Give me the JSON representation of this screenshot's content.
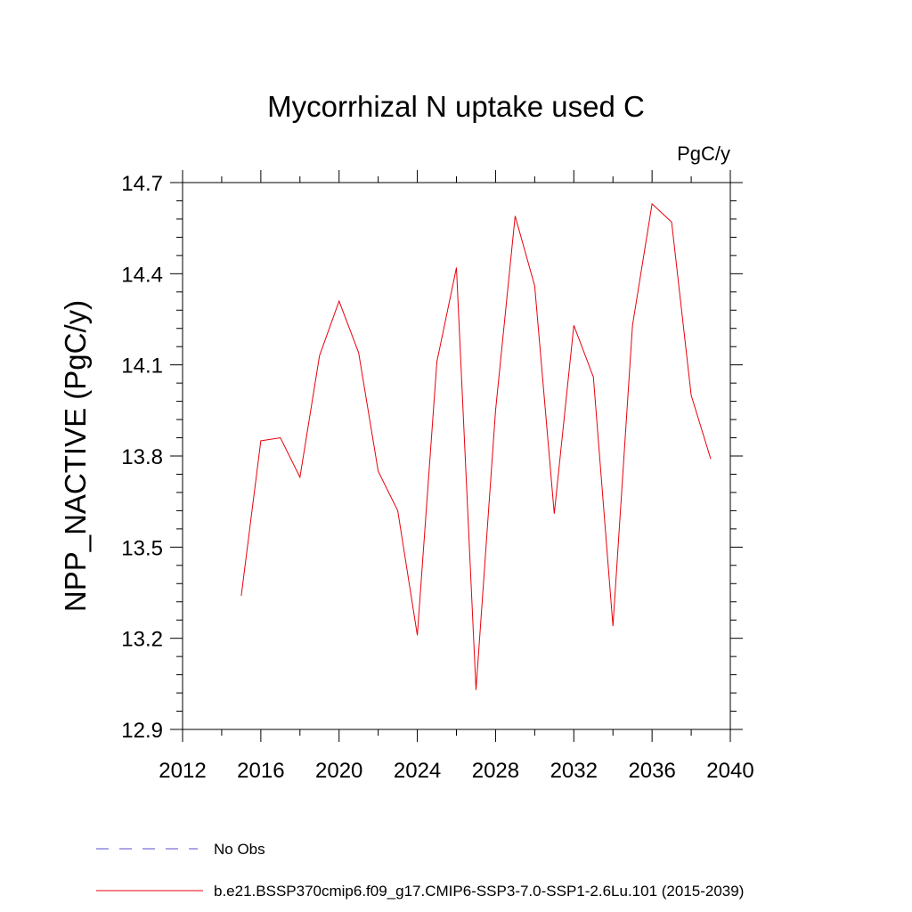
{
  "chart_data": {
    "type": "line",
    "title": "Mycorrhizal N uptake used C",
    "units": "PgC/y",
    "ylabel": "NPP_NACTIVE  (PgC/y)",
    "xlabel": "",
    "xlim": [
      2012,
      2040
    ],
    "ylim": [
      12.9,
      14.7
    ],
    "x_ticks": [
      2012,
      2016,
      2020,
      2024,
      2028,
      2032,
      2036,
      2040
    ],
    "y_ticks": [
      12.9,
      13.2,
      13.5,
      13.8,
      14.1,
      14.4,
      14.7
    ],
    "x_tick_labels": [
      "2012",
      "2016",
      "2020",
      "2024",
      "2028",
      "2032",
      "2036",
      "2040"
    ],
    "y_tick_labels": [
      "12.9",
      "13.2",
      "13.5",
      "13.8",
      "14.1",
      "14.4",
      "14.7"
    ],
    "series": [
      {
        "name": "b.e21.BSSP370cmip6.f09_g17.CMIP6-SSP3-7.0-SSP1-2.6Lu.101 (2015-2039)",
        "color": "#e8000b",
        "x": [
          2015,
          2016,
          2017,
          2018,
          2019,
          2020,
          2021,
          2022,
          2023,
          2024,
          2025,
          2026,
          2027,
          2028,
          2029,
          2030,
          2031,
          2032,
          2033,
          2034,
          2035,
          2036,
          2037,
          2038,
          2039
        ],
        "values": [
          13.34,
          13.85,
          13.86,
          13.73,
          14.13,
          14.31,
          14.14,
          13.75,
          13.62,
          13.21,
          14.11,
          14.42,
          13.03,
          13.95,
          14.59,
          14.36,
          13.61,
          14.23,
          14.06,
          13.24,
          14.23,
          14.63,
          14.57,
          14.0,
          13.79
        ]
      }
    ],
    "legend": [
      {
        "label": "No Obs",
        "color": "#5a4fcf",
        "style": "dashed"
      },
      {
        "label": "b.e21.BSSP370cmip6.f09_g17.CMIP6-SSP3-7.0-SSP1-2.6Lu.101 (2015-2039)",
        "color": "#e8000b",
        "style": "solid"
      }
    ]
  }
}
